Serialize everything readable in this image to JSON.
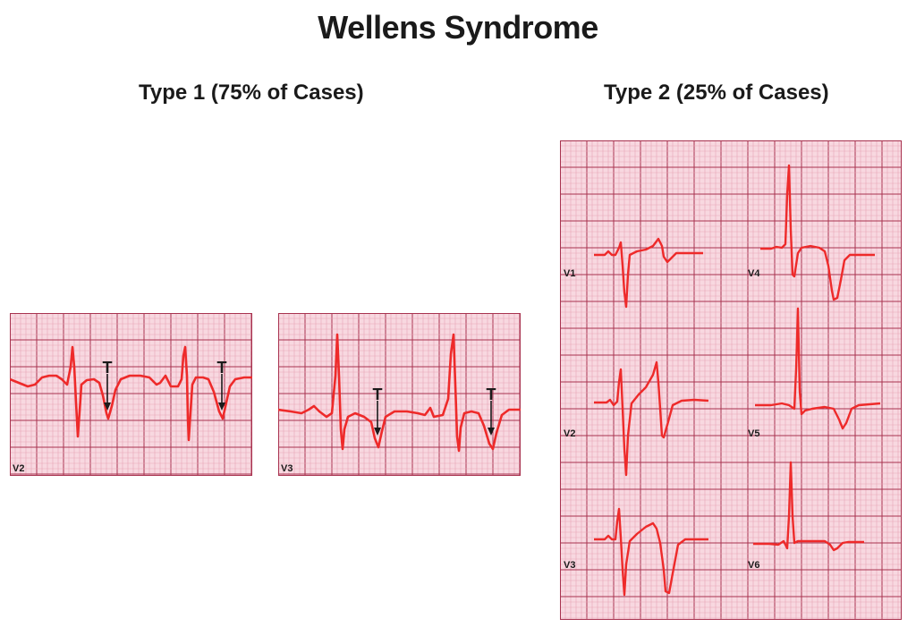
{
  "title": "Wellens Syndrome",
  "type1": {
    "heading": "Type 1 (75% of Cases)",
    "strips": [
      {
        "lead": "V2",
        "t_marker": "T"
      },
      {
        "lead": "V3",
        "t_marker": "T"
      }
    ]
  },
  "type2": {
    "heading": "Type 2 (25% of Cases)",
    "leads": [
      "V1",
      "V2",
      "V3",
      "V4",
      "V5",
      "V6"
    ]
  },
  "colors": {
    "grid_background": "#f8d8e0",
    "grid_minor": "#e7a6b6",
    "grid_major": "#a8324f",
    "trace": "#ee2a2a",
    "text": "#1a1a1a"
  }
}
